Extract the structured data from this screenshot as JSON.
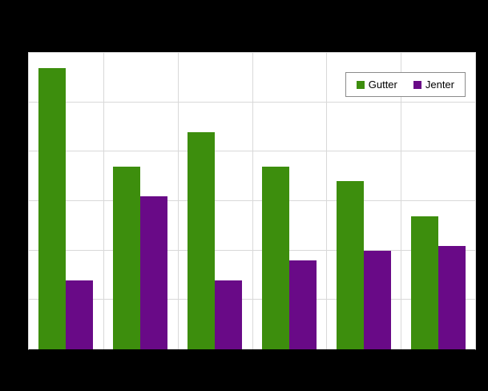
{
  "chart_data": {
    "type": "bar",
    "title": "",
    "xlabel": "",
    "ylabel": "",
    "categories": [
      "",
      "",
      "",
      "",
      "",
      ""
    ],
    "series": [
      {
        "name": "Gutter",
        "color": "#3d8e0d",
        "values": [
          57,
          37,
          44,
          37,
          34,
          27
        ]
      },
      {
        "name": "Jenter",
        "color": "#690a87",
        "values": [
          14,
          31,
          14,
          18,
          20,
          21
        ]
      }
    ],
    "ylim": [
      0,
      60
    ],
    "grid_step": 10,
    "grid": "on",
    "legend_position": "top-right"
  },
  "colors": {
    "page_background": "#000000",
    "plot_background": "#ffffff",
    "gridline": "#d9d9d9"
  }
}
